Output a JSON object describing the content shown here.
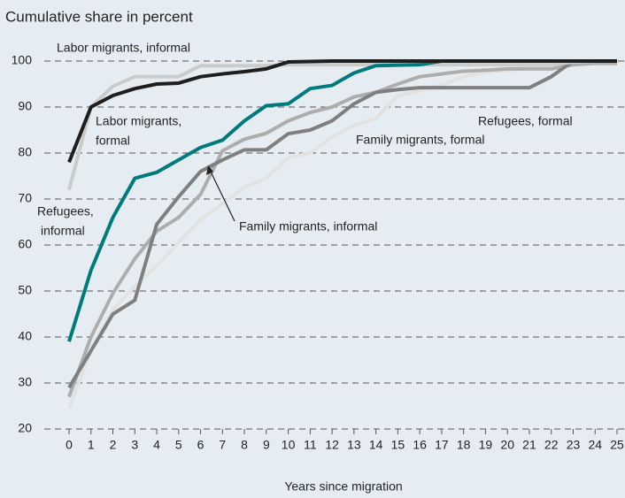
{
  "chart_data": {
    "type": "line",
    "title": "Cumulative share in percent",
    "xlabel": "Years since migration",
    "x": [
      0,
      1,
      2,
      3,
      4,
      5,
      6,
      7,
      8,
      9,
      10,
      11,
      12,
      13,
      14,
      15,
      16,
      17,
      18,
      19,
      20,
      21,
      22,
      23,
      24,
      25
    ],
    "xlim": [
      0,
      25
    ],
    "xticks": [
      0,
      1,
      2,
      3,
      4,
      5,
      6,
      7,
      8,
      9,
      10,
      11,
      12,
      13,
      14,
      15,
      16,
      17,
      18,
      19,
      20,
      21,
      22,
      23,
      24,
      25
    ],
    "ylim": [
      20,
      100
    ],
    "yticks": [
      20,
      30,
      40,
      50,
      60,
      70,
      80,
      90,
      100
    ],
    "grid": true,
    "series": [
      {
        "label": [
          "Family migrants, formal"
        ],
        "color": "#e2e2e2",
        "values": [
          24.5,
          37,
          46,
          51,
          55.5,
          60.5,
          65.5,
          69,
          72.5,
          74.5,
          79,
          80,
          83.5,
          86,
          87.5,
          92.5,
          93.5,
          94.8,
          96.6,
          97.5,
          98,
          98.5,
          99,
          99.5,
          100,
          100
        ]
      },
      {
        "label": [
          "Refugees,",
          "informal"
        ],
        "color": "#adadad",
        "values": [
          27,
          40,
          49.5,
          57,
          63,
          66,
          71,
          80.5,
          83,
          84.3,
          87,
          88.8,
          90,
          92.2,
          93.2,
          95,
          96.6,
          97.2,
          97.8,
          98,
          98.3,
          98.3,
          98.3,
          99.2,
          99.5,
          99.5
        ]
      },
      {
        "label": [
          "Family migrants, informal"
        ],
        "color": "#7f7f7f",
        "values": [
          29,
          37,
          45,
          48,
          64.5,
          70.5,
          76,
          78.5,
          80.7,
          80.7,
          84.2,
          85,
          87,
          90.7,
          93.2,
          93.8,
          94.2,
          94.2,
          94.2,
          94.2,
          94.2,
          94.2,
          96.6,
          100,
          100,
          100
        ]
      },
      {
        "label": [
          "Labor migrants, informal"
        ],
        "color": "#cbcbcb",
        "values": [
          72,
          90,
          94.5,
          96.6,
          96.6,
          96.6,
          99,
          99,
          99,
          99,
          99.2,
          99.2,
          99.2,
          99.2,
          99.2,
          99.2,
          99.2,
          99.2,
          99.2,
          99.2,
          99.2,
          99.2,
          99.2,
          99.8,
          100,
          100
        ]
      },
      {
        "label": [
          "Refugees, formal"
        ],
        "color": "#007b7b",
        "values": [
          39,
          54.5,
          66,
          74.5,
          75.8,
          78.5,
          81.2,
          82.8,
          87,
          90.3,
          90.7,
          94,
          94.7,
          97.4,
          99,
          99.1,
          99.2,
          100,
          100,
          100,
          100,
          100,
          100,
          100,
          100,
          100
        ]
      },
      {
        "label": [
          "Labor migrants,",
          "formal"
        ],
        "color": "#1e1e1e",
        "values": [
          78,
          90,
          92.5,
          94,
          95,
          95.2,
          96.6,
          97.2,
          97.7,
          98.3,
          99.8,
          99.9,
          100,
          100,
          100,
          100,
          100,
          100,
          100,
          100,
          100,
          100,
          100,
          100,
          100,
          100
        ]
      }
    ]
  }
}
